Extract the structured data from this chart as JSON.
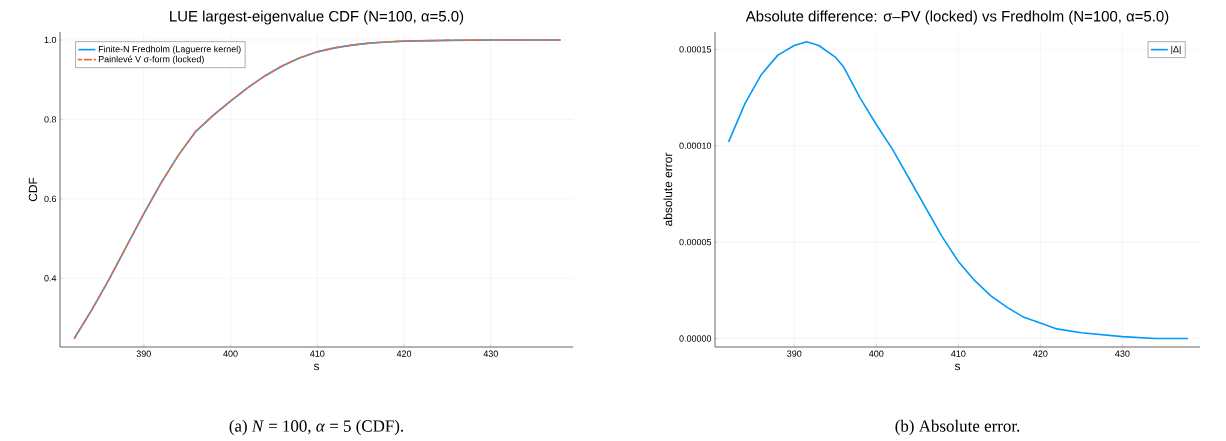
{
  "chart_data": [
    {
      "type": "line",
      "title": "LUE largest-eigenvalue CDF (N=100, α=5.0)",
      "xlabel": "s",
      "ylabel": "CDF",
      "xlim": [
        380.35,
        439.47
      ],
      "ylim": [
        0.227,
        1.02
      ],
      "xticks": [
        390,
        400,
        410,
        420,
        430
      ],
      "yticks": [
        {
          "value": 0.4,
          "label": "0.4"
        },
        {
          "value": 0.6,
          "label": "0.6"
        },
        {
          "value": 0.8,
          "label": "0.8"
        },
        {
          "value": 1.0,
          "label": "1.0"
        }
      ],
      "grid": true,
      "legend": "top left",
      "x": [
        382,
        384,
        386,
        388,
        390,
        392,
        394,
        396,
        398,
        400,
        402,
        404,
        406,
        408,
        410,
        412,
        414,
        416,
        418,
        420,
        425,
        430,
        438
      ],
      "series": [
        {
          "name": "Finite-N Fredholm (Laguerre kernel)",
          "color": "#009af9",
          "line_style": "solid",
          "values": [
            0.249,
            0.32,
            0.397,
            0.48,
            0.562,
            0.64,
            0.71,
            0.77,
            0.81,
            0.846,
            0.88,
            0.91,
            0.935,
            0.955,
            0.97,
            0.98,
            0.987,
            0.992,
            0.995,
            0.997,
            0.999,
            1.0,
            1.0
          ]
        },
        {
          "name": "Painlevé V σ-form (locked)",
          "color": "#e26f46",
          "line_style": "dashed",
          "values": [
            0.249,
            0.32,
            0.397,
            0.48,
            0.562,
            0.64,
            0.71,
            0.77,
            0.81,
            0.846,
            0.88,
            0.91,
            0.935,
            0.955,
            0.97,
            0.98,
            0.987,
            0.992,
            0.995,
            0.997,
            0.999,
            1.0,
            1.0
          ]
        }
      ],
      "annotations": [
        "(a) *N* = 100,  *α* = 5 (CDF)."
      ]
    },
    {
      "type": "line",
      "title": "Absolute difference: σ–PV (locked) vs Fredholm (N=100, α=5.0)",
      "xlabel": "s",
      "ylabel": "absolute error",
      "xlim": [
        380.34,
        439.46
      ],
      "ylim": [
        -4.4e-06,
        0.000159
      ],
      "xticks": [
        390,
        400,
        410,
        420,
        430
      ],
      "yticks": [
        {
          "value": 0,
          "label": "0.00000"
        },
        {
          "value": 5e-05,
          "label": "0.00005"
        },
        {
          "value": 0.0001,
          "label": "0.00010"
        },
        {
          "value": 0.00015,
          "label": "0.00015"
        }
      ],
      "grid": true,
      "legend": "top right",
      "x": [
        382,
        384,
        386,
        388,
        390,
        391.5,
        393,
        395,
        396,
        398,
        400,
        402,
        404,
        406,
        408,
        410,
        412,
        414,
        416,
        418,
        420,
        422,
        425,
        430,
        434,
        438
      ],
      "series": [
        {
          "name": "|Δ|",
          "color": "#009af9",
          "line_style": "solid",
          "values": [
            0.000102,
            0.000122,
            0.000137,
            0.000147,
            0.000152,
            0.000154,
            0.000152,
            0.000146,
            0.000141,
            0.000125,
            0.000111,
            9.8e-05,
            8.3e-05,
            6.8e-05,
            5.3e-05,
            4e-05,
            3e-05,
            2.2e-05,
            1.6e-05,
            1.1e-05,
            8e-06,
            5e-06,
            3e-06,
            1e-06,
            0.0,
            0.0
          ]
        }
      ],
      "annotations": [
        "(b) Absolute error."
      ]
    }
  ]
}
